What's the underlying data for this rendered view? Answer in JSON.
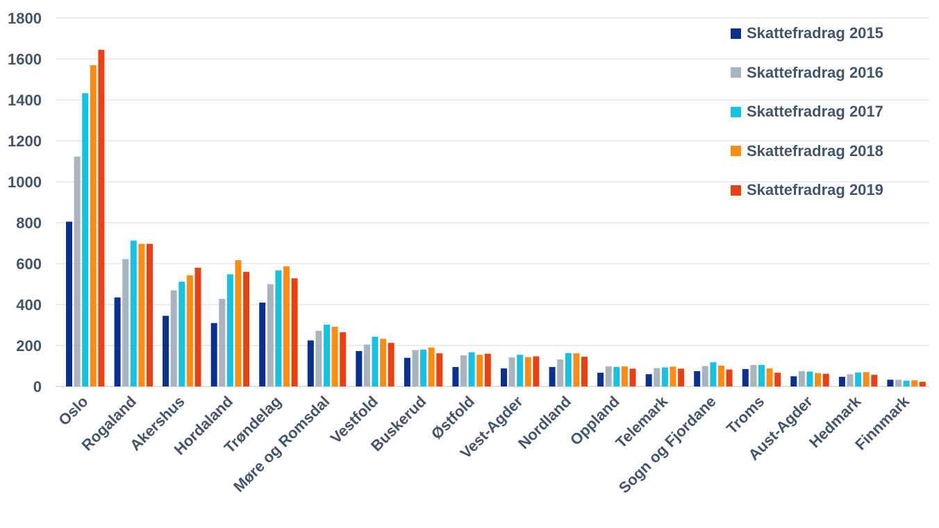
{
  "chart_data": {
    "type": "bar",
    "title": "",
    "xlabel": "",
    "ylabel": "",
    "ylim": [
      0,
      1800
    ],
    "yticks": [
      0,
      200,
      400,
      600,
      800,
      1000,
      1200,
      1400,
      1600,
      1800
    ],
    "grid": true,
    "legend_position": "top-right",
    "categories": [
      "Oslo",
      "Rogaland",
      "Akershus",
      "Hordaland",
      "Trøndelag",
      "Møre og Romsdal",
      "Vestfold",
      "Buskerud",
      "Østfold",
      "Vest-Agder",
      "Nordland",
      "Oppland",
      "Telemark",
      "Sogn og Fjordane",
      "Troms",
      "Aust-Agder",
      "Hedmark",
      "Finnmark"
    ],
    "series": [
      {
        "name": "Skattefradrag 2015",
        "color": "#0b318f",
        "values": [
          805,
          435,
          345,
          310,
          410,
          225,
          173,
          140,
          95,
          88,
          95,
          67,
          60,
          75,
          85,
          50,
          47,
          33
        ]
      },
      {
        "name": "Skattefradrag 2016",
        "color": "#a9b4be",
        "values": [
          1123,
          622,
          470,
          428,
          500,
          272,
          205,
          178,
          152,
          142,
          132,
          98,
          90,
          100,
          105,
          75,
          60,
          33
        ]
      },
      {
        "name": "Skattefradrag 2017",
        "color": "#16c2e0",
        "values": [
          1433,
          713,
          512,
          548,
          567,
          302,
          243,
          180,
          167,
          155,
          163,
          95,
          93,
          118,
          105,
          73,
          68,
          28
        ]
      },
      {
        "name": "Skattefradrag 2018",
        "color": "#ff8c12",
        "values": [
          1570,
          697,
          543,
          617,
          587,
          292,
          233,
          190,
          155,
          143,
          162,
          98,
          97,
          102,
          88,
          65,
          70,
          30
        ]
      },
      {
        "name": "Skattefradrag 2019",
        "color": "#e64216",
        "values": [
          1645,
          697,
          580,
          560,
          528,
          265,
          213,
          162,
          160,
          147,
          145,
          87,
          87,
          83,
          67,
          62,
          57,
          23
        ]
      }
    ]
  }
}
